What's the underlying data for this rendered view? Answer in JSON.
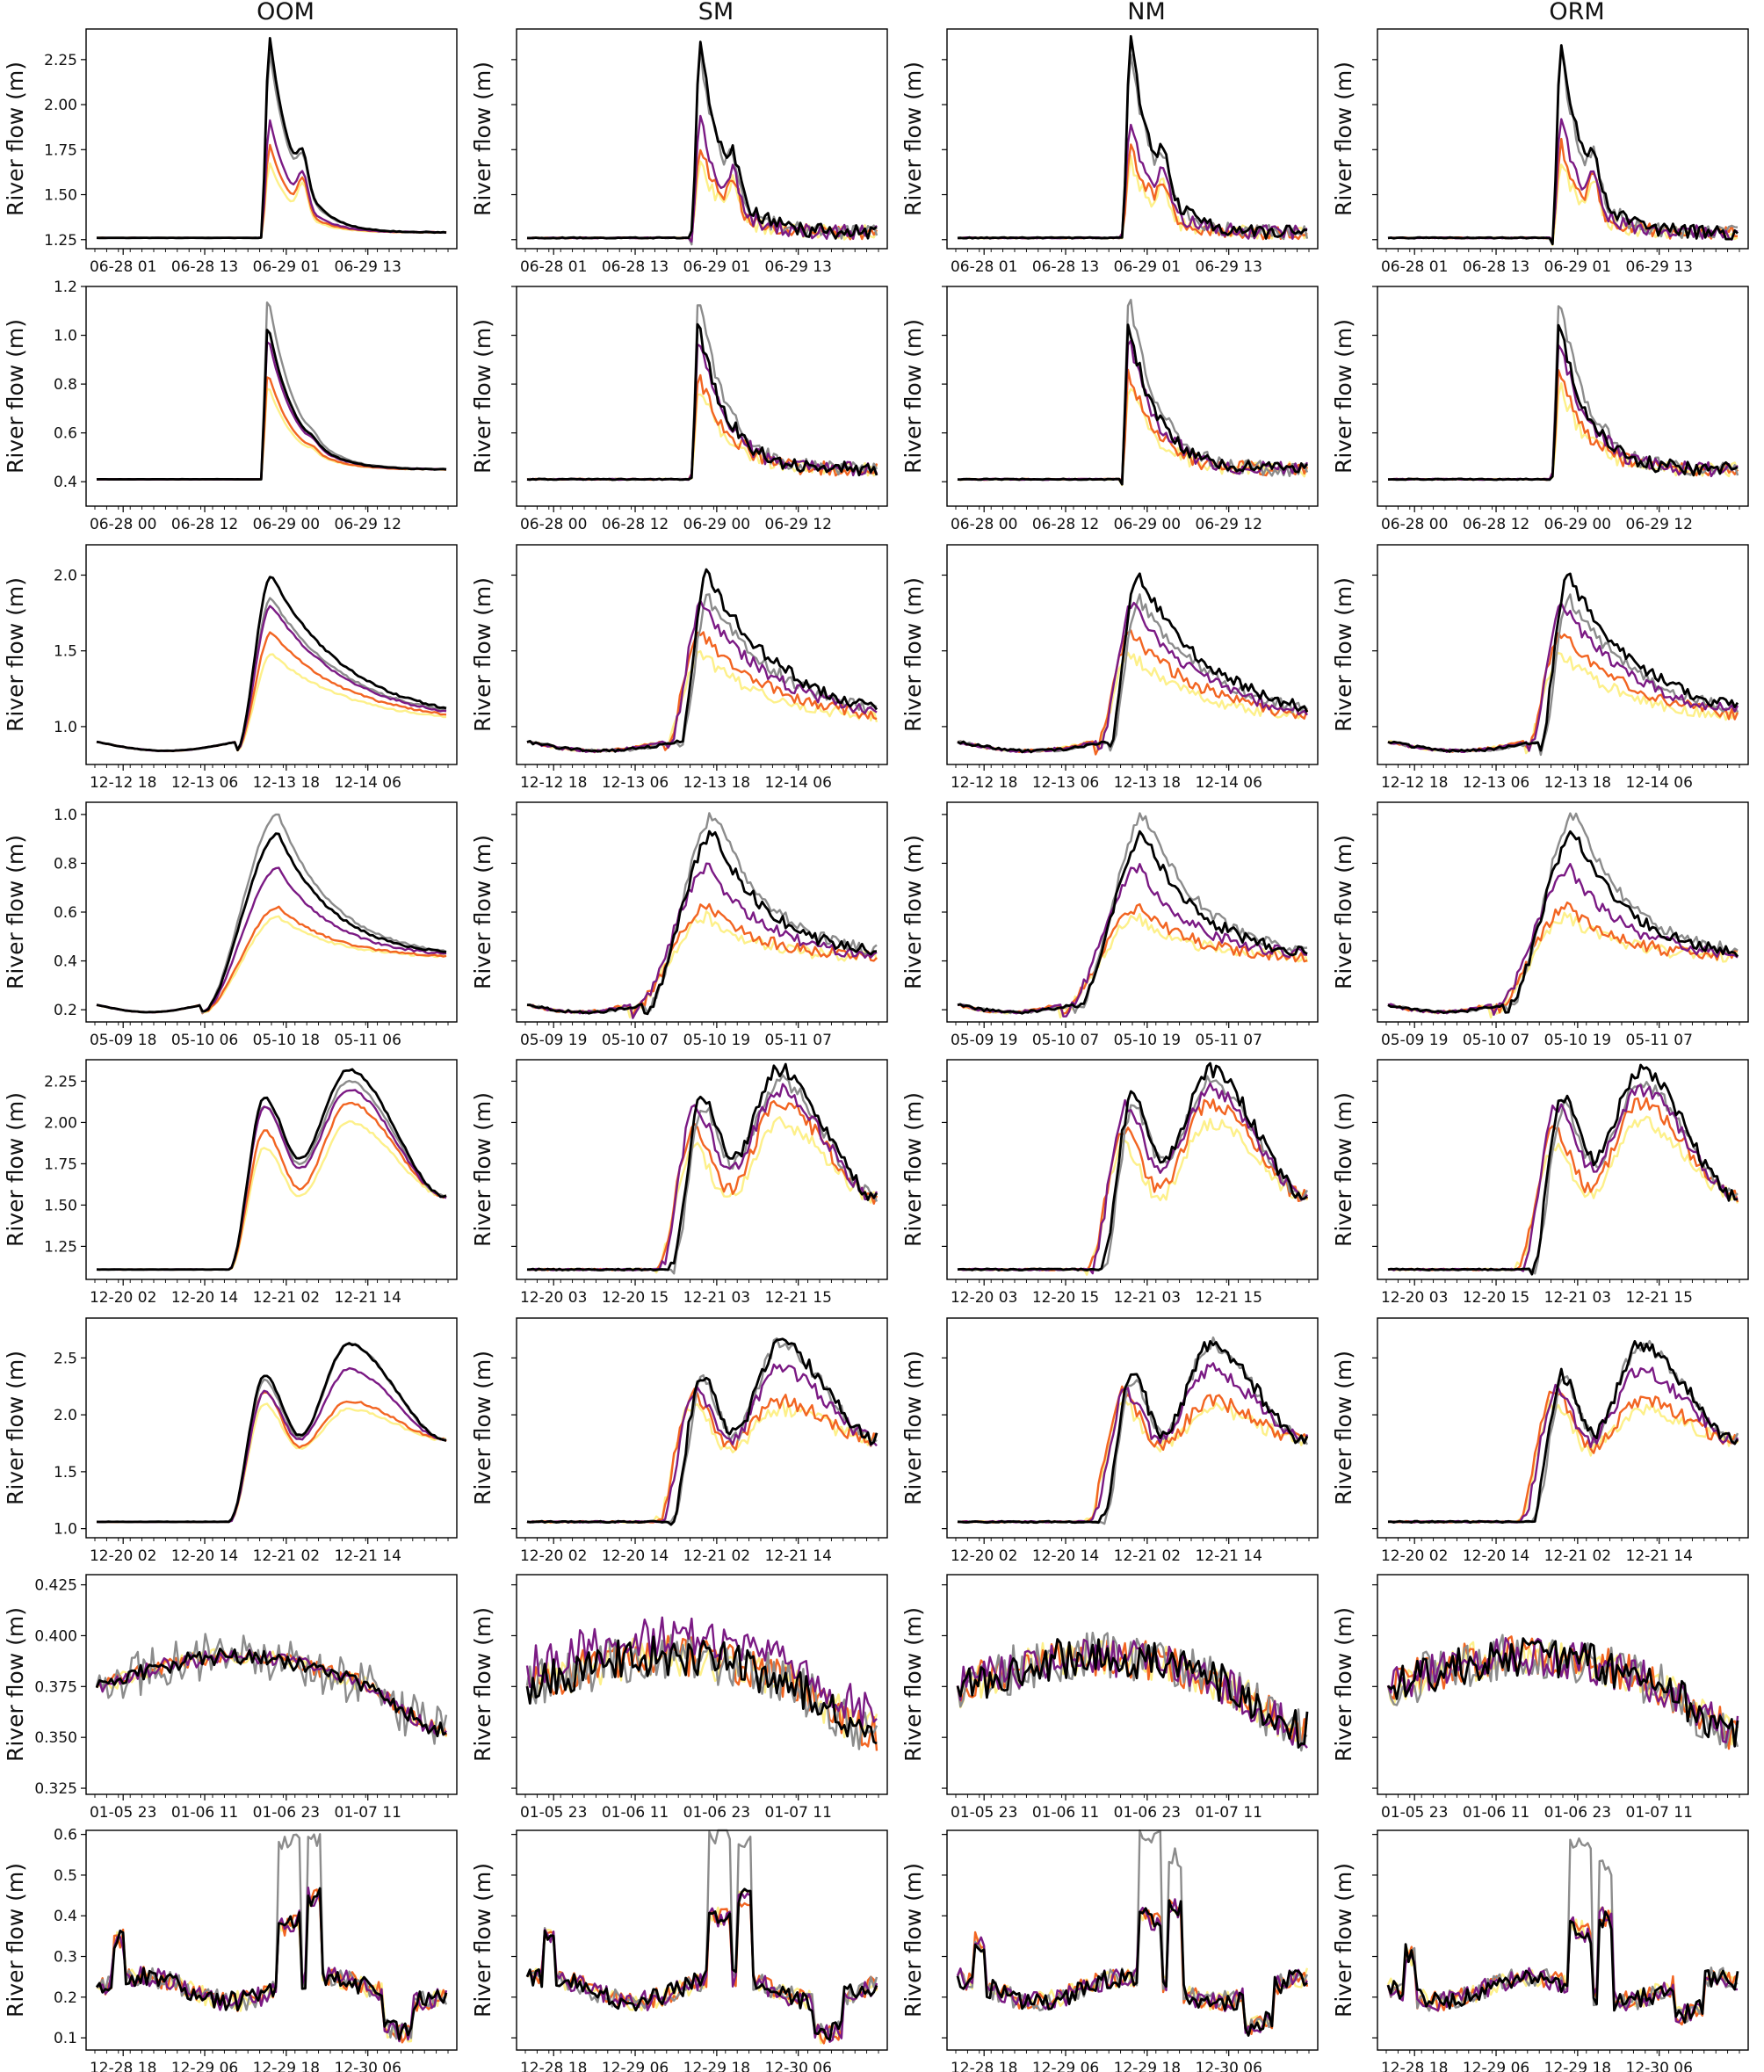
{
  "columns": [
    "OOM",
    "SM",
    "NM",
    "ORM"
  ],
  "ylabel": "River flow (m)",
  "colors": {
    "black": "#000000",
    "gray": "#8c8c8c",
    "purple": "#7b1a84",
    "orange": "#f26522",
    "yellow": "#fdf08a"
  },
  "chart_data": [
    {
      "type": "line",
      "row": 1,
      "shape": "flash",
      "ylim": [
        1.2,
        2.42
      ],
      "yticks": [
        "1.25",
        "1.50",
        "1.75",
        "2.00",
        "2.25"
      ],
      "ytick_values": [
        1.25,
        1.5,
        1.75,
        2.0,
        2.25
      ],
      "x_ticklabels": [
        [
          "06-28 01",
          "06-28 13",
          "06-29 01",
          "06-29 13"
        ],
        [
          "06-28 01",
          "06-28 13",
          "06-29 01",
          "06-29 13"
        ],
        [
          "06-28 01",
          "06-28 13",
          "06-29 01",
          "06-29 13"
        ],
        [
          "06-28 01",
          "06-28 13",
          "06-29 01",
          "06-29 13"
        ]
      ],
      "xtick_pos": [
        0.1,
        0.32,
        0.54,
        0.76
      ],
      "params": {
        "base": 1.26,
        "end": 1.29,
        "onset": 0.47,
        "peak_x": 0.495,
        "tail": 0.07,
        "second_x": 0.59,
        "second": 1.8,
        "peaks": {
          "black": 2.38,
          "gray": 2.3,
          "purple": 1.92,
          "orange": 1.78,
          "yellow": 1.68
        }
      }
    },
    {
      "type": "line",
      "row": 2,
      "shape": "flash",
      "ylim": [
        0.3,
        1.2
      ],
      "yticks": [
        "0.4",
        "0.6",
        "0.8",
        "1.0",
        "1.2"
      ],
      "ytick_values": [
        0.4,
        0.6,
        0.8,
        1.0,
        1.2
      ],
      "x_ticklabels": [
        [
          "06-28 00",
          "06-28 12",
          "06-29 00",
          "06-29 12"
        ],
        [
          "06-28 00",
          "06-28 12",
          "06-29 00",
          "06-29 12"
        ],
        [
          "06-28 00",
          "06-28 12",
          "06-29 00",
          "06-29 12"
        ],
        [
          "06-28 00",
          "06-28 12",
          "06-29 00",
          "06-29 12"
        ]
      ],
      "xtick_pos": [
        0.1,
        0.32,
        0.54,
        0.76
      ],
      "params": {
        "base": 0.41,
        "end": 0.45,
        "onset": 0.47,
        "peak_x": 0.49,
        "tail": 0.08,
        "second_x": 0.62,
        "second": 0.5,
        "peaks": {
          "black": 1.05,
          "gray": 1.17,
          "purple": 1.0,
          "orange": 0.85,
          "yellow": 0.8
        }
      }
    },
    {
      "type": "line",
      "row": 3,
      "shape": "hump",
      "ylim": [
        0.75,
        2.2
      ],
      "yticks": [
        "1.0",
        "1.5",
        "2.0"
      ],
      "ytick_values": [
        1.0,
        1.5,
        2.0
      ],
      "x_ticklabels": [
        [
          "12-12 18",
          "12-13 06",
          "12-13 18",
          "12-14 06"
        ],
        [
          "12-12 18",
          "12-13 06",
          "12-13 18",
          "12-14 06"
        ],
        [
          "12-12 18",
          "12-13 06",
          "12-13 18",
          "12-14 06"
        ],
        [
          "12-12 18",
          "12-13 06",
          "12-13 18",
          "12-14 06"
        ]
      ],
      "xtick_pos": [
        0.1,
        0.32,
        0.54,
        0.76
      ],
      "params": {
        "base": 0.9,
        "dip": 0.84,
        "end": 1.02,
        "onset": 0.4,
        "peak_x": 0.5,
        "tail": 0.22,
        "peaks": {
          "black": 2.0,
          "gray": 1.85,
          "purple": 1.8,
          "orange": 1.62,
          "yellow": 1.48
        }
      }
    },
    {
      "type": "line",
      "row": 4,
      "shape": "hump",
      "ylim": [
        0.15,
        1.05
      ],
      "yticks": [
        "0.2",
        "0.4",
        "0.6",
        "0.8",
        "1.0"
      ],
      "ytick_values": [
        0.2,
        0.4,
        0.6,
        0.8,
        1.0
      ],
      "x_ticklabels": [
        [
          "05-09 18",
          "05-10 06",
          "05-10 18",
          "05-11 06"
        ],
        [
          "05-09 19",
          "05-10 07",
          "05-10 19",
          "05-11 07"
        ],
        [
          "05-09 19",
          "05-10 07",
          "05-10 19",
          "05-11 07"
        ],
        [
          "05-09 19",
          "05-10 07",
          "05-10 19",
          "05-11 07"
        ]
      ],
      "xtick_pos": [
        0.1,
        0.32,
        0.54,
        0.76
      ],
      "params": {
        "base": 0.22,
        "dip": 0.19,
        "end": 0.41,
        "onset": 0.3,
        "peak_x": 0.52,
        "tail": 0.16,
        "peaks": {
          "black": 0.92,
          "gray": 1.0,
          "purple": 0.78,
          "orange": 0.62,
          "yellow": 0.58
        }
      }
    },
    {
      "type": "line",
      "row": 5,
      "shape": "double",
      "ylim": [
        1.05,
        2.38
      ],
      "yticks": [
        "1.25",
        "1.50",
        "1.75",
        "2.00",
        "2.25"
      ],
      "ytick_values": [
        1.25,
        1.5,
        1.75,
        2.0,
        2.25
      ],
      "x_ticklabels": [
        [
          "12-20 02",
          "12-20 14",
          "12-21 02",
          "12-21 14"
        ],
        [
          "12-20 03",
          "12-20 15",
          "12-21 03",
          "12-21 15"
        ],
        [
          "12-20 03",
          "12-20 15",
          "12-21 03",
          "12-21 15"
        ],
        [
          "12-20 03",
          "12-20 15",
          "12-21 03",
          "12-21 15"
        ]
      ],
      "xtick_pos": [
        0.1,
        0.32,
        0.54,
        0.76
      ],
      "params": {
        "base": 1.11,
        "onset": 0.38,
        "p1x": 0.48,
        "vx": 0.58,
        "p2x": 0.72,
        "end": 1.55,
        "peaks": {
          "black": [
            2.15,
            1.78,
            2.32
          ],
          "gray": [
            2.1,
            1.75,
            2.25
          ],
          "purple": [
            2.1,
            1.72,
            2.2
          ],
          "orange": [
            1.95,
            1.6,
            2.12
          ],
          "yellow": [
            1.85,
            1.55,
            2.0
          ]
        }
      }
    },
    {
      "type": "line",
      "row": 6,
      "shape": "double",
      "ylim": [
        0.92,
        2.85
      ],
      "yticks": [
        "1.0",
        "1.5",
        "2.0",
        "2.5"
      ],
      "ytick_values": [
        1.0,
        1.5,
        2.0,
        2.5
      ],
      "x_ticklabels": [
        [
          "12-20 02",
          "12-20 14",
          "12-21 02",
          "12-21 14"
        ],
        [
          "12-20 02",
          "12-20 14",
          "12-21 02",
          "12-21 14"
        ],
        [
          "12-20 02",
          "12-20 14",
          "12-21 02",
          "12-21 14"
        ],
        [
          "12-20 02",
          "12-20 14",
          "12-21 02",
          "12-21 14"
        ]
      ],
      "xtick_pos": [
        0.1,
        0.32,
        0.54,
        0.76
      ],
      "params": {
        "base": 1.06,
        "onset": 0.38,
        "p1x": 0.48,
        "vx": 0.58,
        "p2x": 0.72,
        "end": 1.78,
        "peaks": {
          "black": [
            2.35,
            1.82,
            2.62
          ],
          "gray": [
            2.3,
            1.8,
            2.62
          ],
          "purple": [
            2.2,
            1.78,
            2.4
          ],
          "orange": [
            2.2,
            1.72,
            2.12
          ],
          "yellow": [
            2.1,
            1.7,
            2.05
          ]
        }
      }
    },
    {
      "type": "line",
      "row": 7,
      "shape": "noisy",
      "ylim": [
        0.322,
        0.43
      ],
      "yticks": [
        "0.325",
        "0.350",
        "0.375",
        "0.400",
        "0.425"
      ],
      "ytick_values": [
        0.325,
        0.35,
        0.375,
        0.4,
        0.425
      ],
      "x_ticklabels": [
        [
          "01-05 23",
          "01-06 11",
          "01-06 23",
          "01-07 11"
        ],
        [
          "01-05 23",
          "01-06 11",
          "01-06 23",
          "01-07 11"
        ],
        [
          "01-05 23",
          "01-06 11",
          "01-06 23",
          "01-07 11"
        ],
        [
          "01-05 23",
          "01-06 11",
          "01-06 23",
          "01-07 11"
        ]
      ],
      "xtick_pos": [
        0.1,
        0.32,
        0.54,
        0.76
      ],
      "params": {
        "base": 0.374,
        "top": 0.39,
        "end": 0.353
      }
    },
    {
      "type": "line",
      "row": 8,
      "shape": "spiky",
      "ylim": [
        0.07,
        0.61
      ],
      "yticks": [
        "0.1",
        "0.2",
        "0.3",
        "0.4",
        "0.5",
        "0.6"
      ],
      "ytick_values": [
        0.1,
        0.2,
        0.3,
        0.4,
        0.5,
        0.6
      ],
      "x_ticklabels": [
        [
          "12-28 18",
          "12-29 06",
          "12-29 18",
          "12-30 06"
        ],
        [
          "12-28 18",
          "12-29 06",
          "12-29 18",
          "12-30 06"
        ],
        [
          "12-28 18",
          "12-29 06",
          "12-29 18",
          "12-30 06"
        ],
        [
          "12-28 18",
          "12-29 06",
          "12-29 18",
          "12-30 06"
        ]
      ],
      "xtick_pos": [
        0.1,
        0.32,
        0.54,
        0.76
      ],
      "params": {
        "base": 0.22
      }
    }
  ]
}
